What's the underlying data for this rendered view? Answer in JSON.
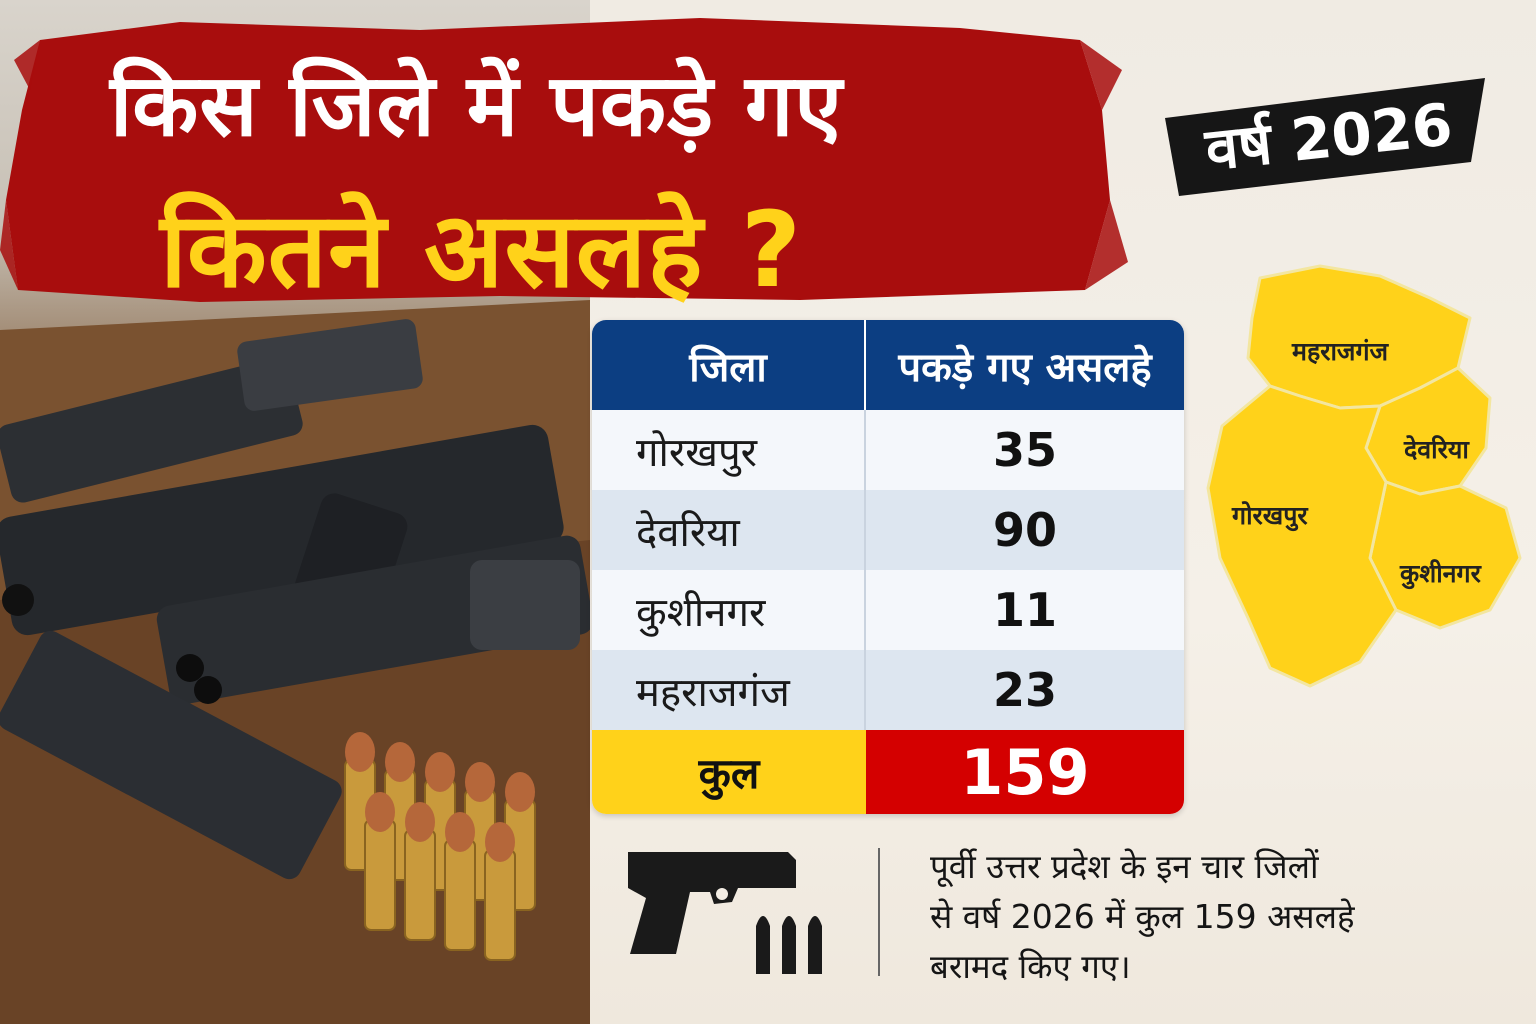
{
  "headline": {
    "line1": "किस जिले में पकड़े गए",
    "line2": "कितने असलहे ?"
  },
  "year_badge": "वर्ष 2026",
  "table": {
    "headers": [
      "जिला",
      "पकड़े गए असलहे"
    ],
    "rows": [
      {
        "district": "गोरखपुर",
        "count": "35"
      },
      {
        "district": "देवरिया",
        "count": "90"
      },
      {
        "district": "कुशीनगर",
        "count": "11"
      },
      {
        "district": "महराजगंज",
        "count": "23"
      }
    ],
    "total_label": "कुल",
    "total_value": "159"
  },
  "map": {
    "labels": {
      "maharajganj": "महराजगंज",
      "deoria": "देवरिया",
      "gorakhpur": "गोरखपुर",
      "kushinagar": "कुशीनगर"
    },
    "fill_color": "#ffd21a"
  },
  "footer": {
    "text_line1": "पूर्वी उत्तर प्रदेश के इन चार जिलों",
    "text_line2": "से वर्ष 2026 में कुल 159 असलहे",
    "text_line3": "बरामद किए गए।",
    "icons": [
      "pistol-icon",
      "bullets-icon"
    ]
  },
  "colors": {
    "banner_red": "#a80d0d",
    "headline_yellow": "#ffd21a",
    "table_header_blue": "#0c3e82",
    "total_red": "#d40000"
  }
}
